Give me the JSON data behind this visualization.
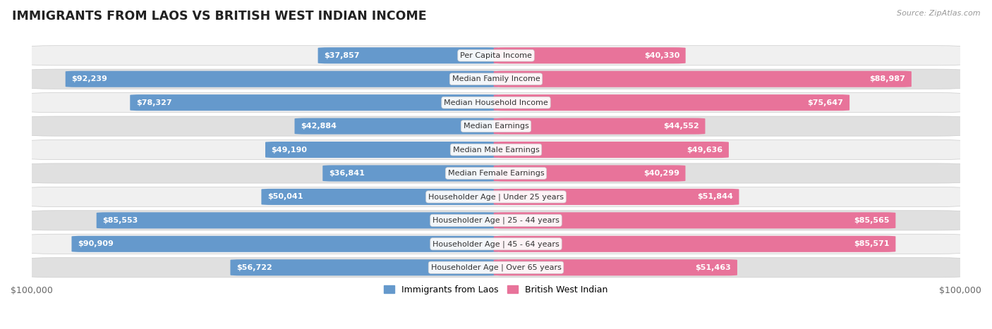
{
  "title": "IMMIGRANTS FROM LAOS VS BRITISH WEST INDIAN INCOME",
  "source": "Source: ZipAtlas.com",
  "categories": [
    "Per Capita Income",
    "Median Family Income",
    "Median Household Income",
    "Median Earnings",
    "Median Male Earnings",
    "Median Female Earnings",
    "Householder Age | Under 25 years",
    "Householder Age | 25 - 44 years",
    "Householder Age | 45 - 64 years",
    "Householder Age | Over 65 years"
  ],
  "laos_values": [
    37857,
    92239,
    78327,
    42884,
    49190,
    36841,
    50041,
    85553,
    90909,
    56722
  ],
  "bwi_values": [
    40330,
    88987,
    75647,
    44552,
    49636,
    40299,
    51844,
    85565,
    85571,
    51463
  ],
  "max_value": 100000,
  "laos_color_light": "#a8c4e0",
  "laos_color_full": "#6599cc",
  "bwi_color_light": "#f5b8cb",
  "bwi_color_full": "#e8739a",
  "label_white": "#ffffff",
  "label_dark": "#555555",
  "row_bg_light": "#f0f0f0",
  "row_bg_dark": "#e0e0e0",
  "row_outline": "#cccccc",
  "category_box_bg": "#ffffff",
  "legend_laos": "Immigrants from Laos",
  "legend_bwi": "British West Indian",
  "inside_threshold": 0.2
}
